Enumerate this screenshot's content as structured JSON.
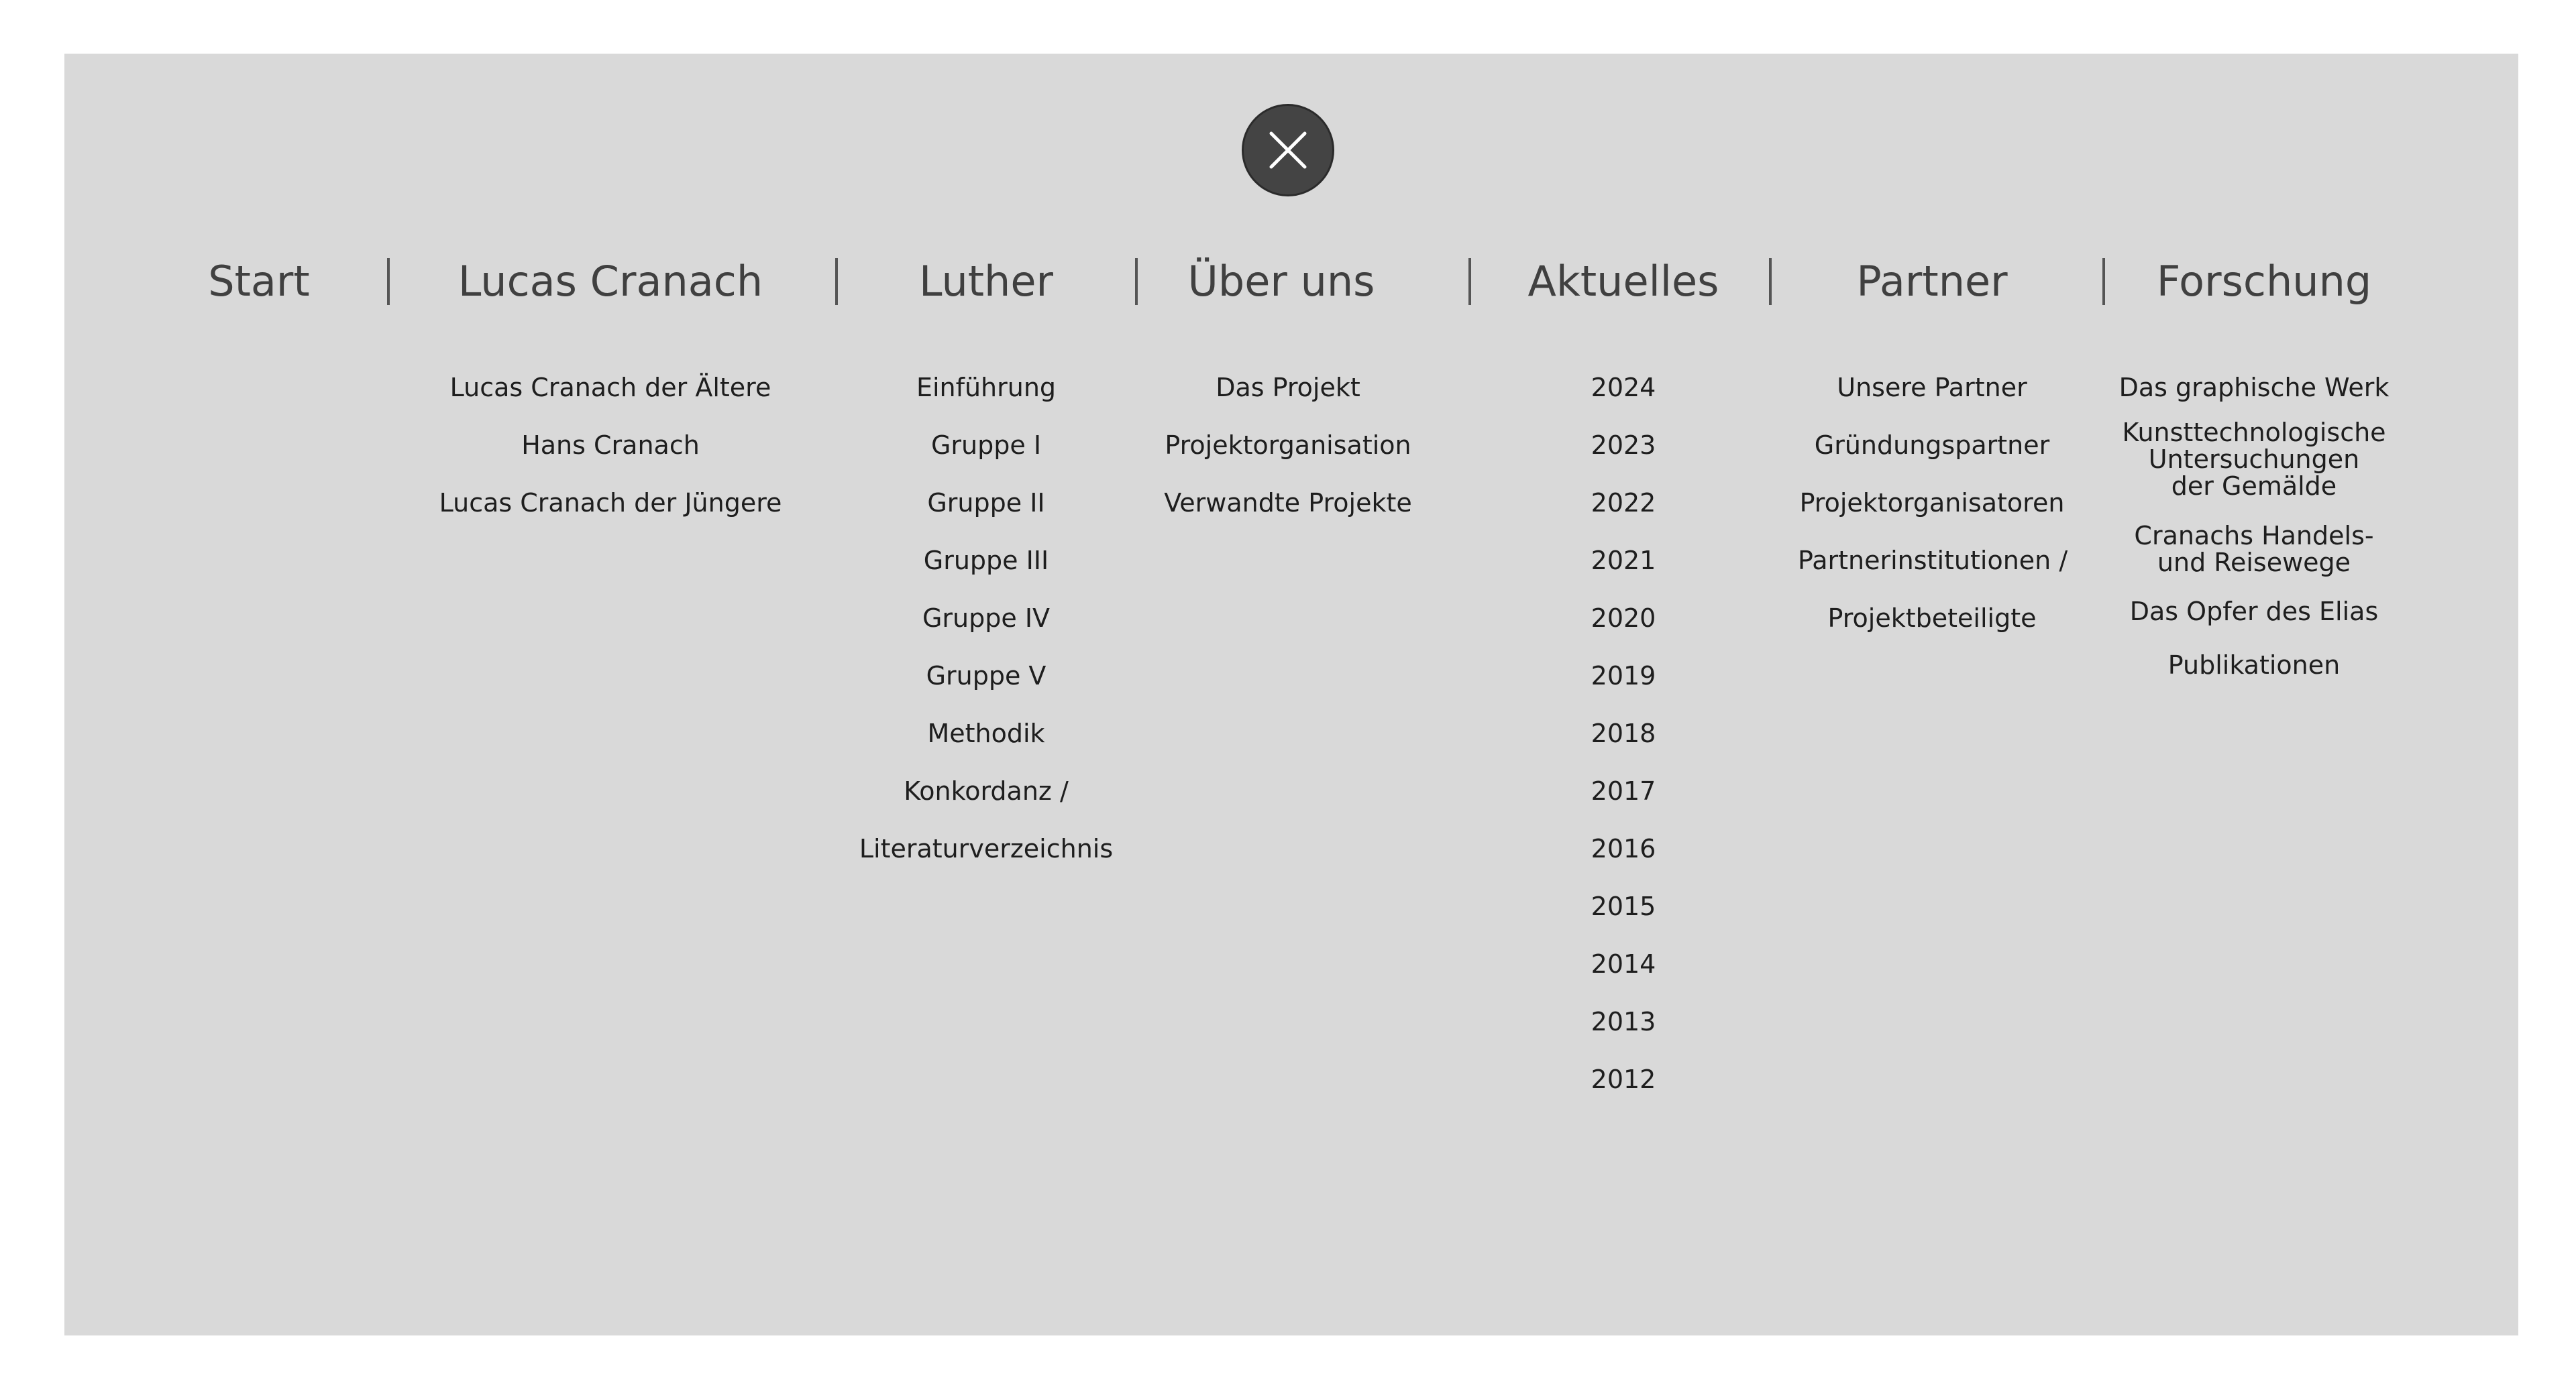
{
  "nav": {
    "headers": [
      "Start",
      "Lucas Cranach",
      "Luther",
      "Über uns",
      "Aktuelles",
      "Partner",
      "Forschung"
    ],
    "separator": "|"
  },
  "menus": {
    "lucas_cranach": [
      "Lucas Cranach der Ältere",
      "Hans Cranach",
      "Lucas Cranach der Jüngere"
    ],
    "luther": [
      "Einführung",
      "Gruppe I",
      "Gruppe II",
      "Gruppe III",
      "Gruppe IV",
      "Gruppe V",
      "Methodik",
      "Konkordanz /",
      "Literaturverzeichnis"
    ],
    "ueber_uns": [
      "Das Projekt",
      "Projektorganisation",
      "Verwandte Projekte"
    ],
    "aktuelles": [
      "2024",
      "2023",
      "2022",
      "2021",
      "2020",
      "2019",
      "2018",
      "2017",
      "2016",
      "2015",
      "2014",
      "2013",
      "2012"
    ],
    "partner": [
      "Unsere Partner",
      "Gründungspartner",
      "Projektorganisatoren",
      "Partnerinstitutionen /",
      "Projektbeteiligte"
    ],
    "forschung": {
      "graphic_work": "Das graphische Werk",
      "tech_lines": [
        "Kunsttechnologische",
        "Untersuchungen",
        "der Gemälde"
      ],
      "trade_lines": [
        "Cranachs Handels-",
        "und Reisewege"
      ],
      "elias": "Das Opfer des Elias",
      "publications": "Publikationen"
    }
  },
  "icons": {
    "close": "close-icon"
  },
  "colors": {
    "panel": "#d9d9d9",
    "close_button": "#444444",
    "header_text": "#404040"
  }
}
